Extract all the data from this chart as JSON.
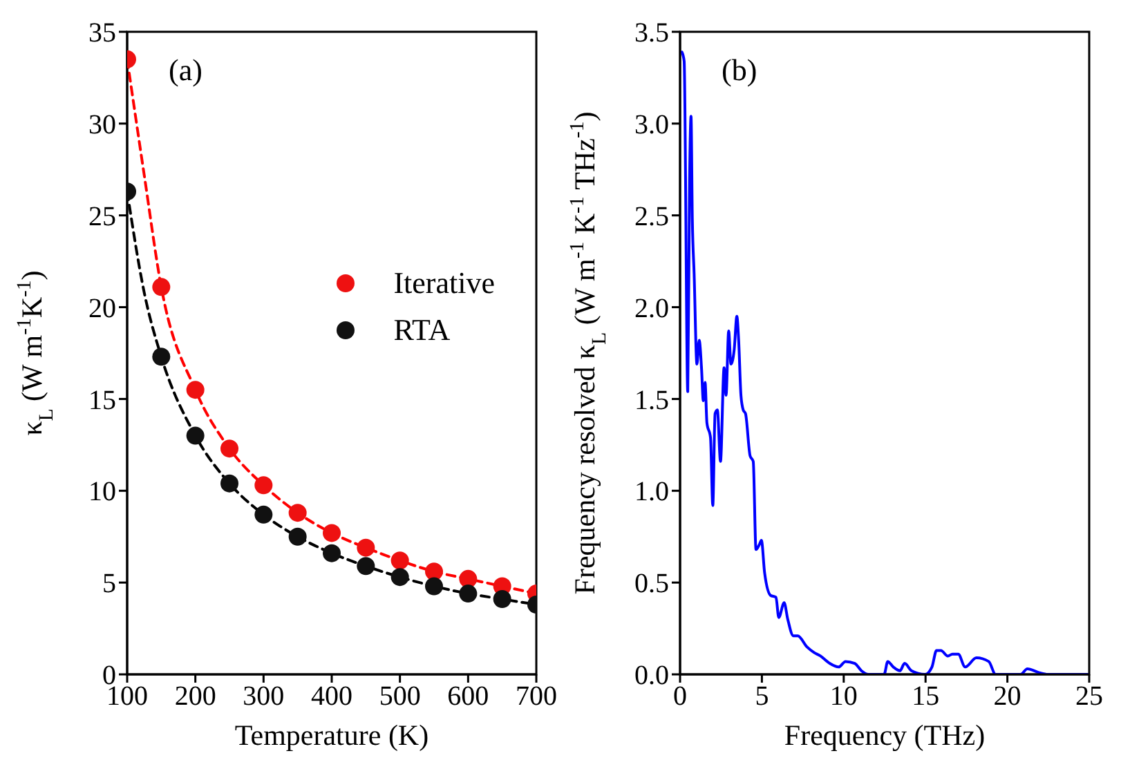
{
  "chart_data": [
    {
      "type": "scatter",
      "xlabel": "Temperature (K)",
      "ylabel": "κ$_{L}$ (W m$^{-1}$K$^{-1}$)",
      "annotations": [
        "(a)"
      ],
      "xlim": [
        100,
        700
      ],
      "xticks": [
        100,
        200,
        300,
        400,
        500,
        600,
        700
      ],
      "ylim": [
        0,
        35
      ],
      "yticks": [
        0,
        5,
        10,
        15,
        20,
        25,
        30,
        35
      ],
      "legend": "right",
      "grid": false,
      "series": [
        {
          "type": "line",
          "color": "#ff0000",
          "line_style": "dashed",
          "marker": "none",
          "x": [
            100,
            125,
            150,
            200,
            250,
            300,
            350,
            400,
            450,
            500,
            550,
            600,
            650,
            700
          ],
          "values": [
            33.5,
            27.2,
            21.1,
            15.5,
            12.3,
            10.3,
            8.8,
            7.7,
            6.9,
            6.2,
            5.6,
            5.2,
            4.8,
            4.4
          ]
        },
        {
          "type": "line",
          "color": "#000000",
          "line_style": "dashed",
          "marker": "none",
          "x": [
            100,
            125,
            150,
            200,
            250,
            300,
            350,
            400,
            450,
            500,
            550,
            600,
            650,
            700
          ],
          "values": [
            26.3,
            20.8,
            17.3,
            13.0,
            10.4,
            8.7,
            7.5,
            6.6,
            5.9,
            5.3,
            4.8,
            4.4,
            4.1,
            3.8
          ]
        },
        {
          "name": "Iterative",
          "color": "#ee1111",
          "marker": "circle",
          "x": [
            100,
            150,
            200,
            250,
            300,
            350,
            400,
            450,
            500,
            550,
            600,
            650,
            700
          ],
          "values": [
            33.5,
            21.1,
            15.5,
            12.3,
            10.3,
            8.8,
            7.7,
            6.9,
            6.2,
            5.6,
            5.2,
            4.8,
            4.4
          ]
        },
        {
          "name": "RTA",
          "color": "#111111",
          "marker": "circle",
          "x": [
            100,
            150,
            200,
            250,
            300,
            350,
            400,
            450,
            500,
            550,
            600,
            650,
            700
          ],
          "values": [
            26.3,
            17.3,
            13.0,
            10.4,
            8.7,
            7.5,
            6.6,
            5.9,
            5.3,
            4.8,
            4.4,
            4.1,
            3.8
          ]
        }
      ]
    },
    {
      "type": "line",
      "xlabel": "Frequency (THz)",
      "ylabel": "Frequency resolved κ$_{L}$ (W m$^{-1}$ K$^{-1}$ THz$^{-1}$)",
      "annotations": [
        "(b)"
      ],
      "xlim": [
        0,
        25
      ],
      "xticks": [
        0,
        5,
        10,
        15,
        20,
        25
      ],
      "ylim": [
        0,
        3.5
      ],
      "yticks": [
        {
          "value": 0,
          "label": "0.0"
        },
        {
          "value": 0.5,
          "label": "0.5"
        },
        {
          "value": 1,
          "label": "1.0"
        },
        {
          "value": 1.5,
          "label": "1.5"
        },
        {
          "value": 2,
          "label": "2.0"
        },
        {
          "value": 2.5,
          "label": "2.5"
        },
        {
          "value": 3,
          "label": "3.0"
        },
        {
          "value": 3.5,
          "label": "3.5"
        }
      ],
      "grid": false,
      "legend": false,
      "series": [
        {
          "color": "#0000ff",
          "line_style": "solid",
          "marker": "none",
          "x": [
            0.11,
            0.25,
            0.47,
            0.58,
            0.67,
            0.75,
            0.86,
            1.03,
            1.17,
            1.31,
            1.42,
            1.53,
            1.64,
            1.86,
            2.0,
            2.14,
            2.28,
            2.47,
            2.69,
            2.81,
            2.97,
            3.11,
            3.31,
            3.47,
            3.58,
            3.72,
            3.86,
            4.0,
            4.28,
            4.47,
            4.64,
            4.86,
            4.97,
            5.17,
            5.53,
            5.86,
            6.03,
            6.36,
            6.58,
            6.92,
            7.19,
            7.75,
            8.17,
            8.58,
            9.14,
            9.69,
            10.11,
            10.67,
            11.08,
            11.5,
            12.47,
            12.69,
            13.03,
            13.44,
            13.72,
            14.14,
            14.97,
            15.39,
            15.67,
            15.94,
            16.36,
            16.64,
            17.0,
            17.42,
            18.11,
            18.86,
            19.28,
            20.81,
            21.22,
            21.92,
            22.47,
            24.9
          ],
          "values": [
            3.39,
            3.34,
            1.54,
            2.68,
            3.04,
            2.48,
            2.18,
            1.69,
            1.82,
            1.67,
            1.49,
            1.59,
            1.37,
            1.29,
            0.92,
            1.42,
            1.44,
            1.16,
            1.67,
            1.52,
            1.87,
            1.69,
            1.77,
            1.95,
            1.82,
            1.52,
            1.44,
            1.42,
            1.19,
            1.16,
            0.68,
            0.71,
            0.73,
            0.55,
            0.43,
            0.42,
            0.31,
            0.39,
            0.3,
            0.21,
            0.21,
            0.15,
            0.12,
            0.1,
            0.06,
            0.04,
            0.07,
            0.06,
            0.02,
            0.0,
            0.0,
            0.07,
            0.04,
            0.02,
            0.06,
            0.02,
            0.0,
            0.04,
            0.13,
            0.13,
            0.1,
            0.11,
            0.11,
            0.04,
            0.09,
            0.07,
            0.0,
            0.0,
            0.03,
            0.01,
            0.0,
            0.0
          ]
        }
      ]
    }
  ]
}
